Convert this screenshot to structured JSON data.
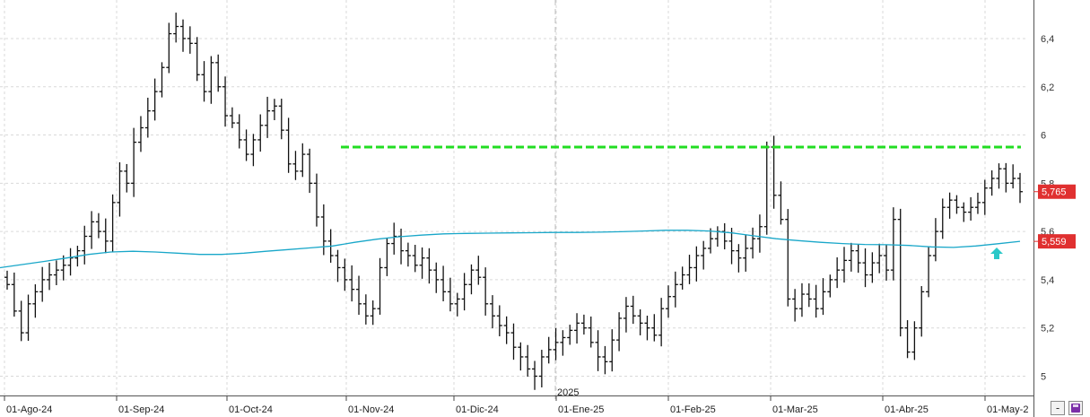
{
  "chart_data": {
    "type": "ohlc",
    "title": "",
    "xlabel": "",
    "ylabel": "",
    "ylim": [
      4.92,
      6.53
    ],
    "y_ticks": [
      {
        "value": 5.0,
        "label": "5"
      },
      {
        "value": 5.2,
        "label": "5,2"
      },
      {
        "value": 5.4,
        "label": "5,4"
      },
      {
        "value": 5.6,
        "label": "5,6"
      },
      {
        "value": 5.8,
        "label": "5,8"
      },
      {
        "value": 6.0,
        "label": "6"
      },
      {
        "value": 6.2,
        "label": "6,2"
      },
      {
        "value": 6.4,
        "label": "6,4"
      }
    ],
    "x_tick_labels": [
      "01-Ago-24",
      "01-Sep-24",
      "01-Oct-24",
      "01-Nov-24",
      "01-Dic-24",
      "01-Ene-25",
      "01-Feb-25",
      "01-Mar-25",
      "01-Abr-25",
      "01-May-2"
    ],
    "year_marker": {
      "label": "2025",
      "after_label": "01-Ene-25"
    },
    "grid": true,
    "close_series": [
      5.38,
      5.27,
      5.18,
      5.3,
      5.35,
      5.4,
      5.42,
      5.44,
      5.46,
      5.49,
      5.52,
      5.58,
      5.64,
      5.6,
      5.56,
      5.72,
      5.85,
      5.8,
      5.97,
      6.03,
      6.1,
      6.18,
      6.28,
      6.42,
      6.45,
      6.4,
      6.38,
      6.25,
      6.18,
      6.3,
      6.2,
      6.08,
      6.05,
      5.98,
      5.92,
      5.98,
      6.04,
      6.1,
      6.12,
      6.02,
      5.88,
      5.85,
      5.92,
      5.8,
      5.66,
      5.56,
      5.5,
      5.45,
      5.4,
      5.36,
      5.3,
      5.25,
      5.28,
      5.45,
      5.55,
      5.58,
      5.52,
      5.5,
      5.46,
      5.49,
      5.44,
      5.4,
      5.35,
      5.3,
      5.32,
      5.38,
      5.44,
      5.41,
      5.3,
      5.25,
      5.21,
      5.18,
      5.12,
      5.08,
      5.03,
      5.0,
      5.08,
      5.11,
      5.14,
      5.16,
      5.19,
      5.22,
      5.2,
      5.14,
      5.08,
      5.06,
      5.15,
      5.24,
      5.29,
      5.25,
      5.22,
      5.2,
      5.17,
      5.28,
      5.33,
      5.38,
      5.42,
      5.45,
      5.5,
      5.53,
      5.57,
      5.6,
      5.56,
      5.52,
      5.49,
      5.53,
      5.57,
      5.62,
      5.95,
      5.75,
      5.65,
      5.32,
      5.28,
      5.34,
      5.32,
      5.28,
      5.35,
      5.4,
      5.44,
      5.48,
      5.52,
      5.47,
      5.42,
      5.47,
      5.5,
      5.44,
      5.65,
      5.2,
      5.1,
      5.2,
      5.35,
      5.5,
      5.6,
      5.7,
      5.73,
      5.7,
      5.68,
      5.7,
      5.72,
      5.78,
      5.82,
      5.86,
      5.8,
      5.82,
      5.765
    ],
    "series": [
      {
        "name": "",
        "type": "line",
        "color": "#19a7c9",
        "values": [
          5.45,
          5.463,
          5.476,
          5.49,
          5.505,
          5.515,
          5.518,
          5.515,
          5.51,
          5.505,
          5.505,
          5.51,
          5.518,
          5.525,
          5.532,
          5.54,
          5.555,
          5.568,
          5.578,
          5.585,
          5.59,
          5.592,
          5.593,
          5.594,
          5.595,
          5.596,
          5.596,
          5.597,
          5.599,
          5.602,
          5.605,
          5.605,
          5.602,
          5.594,
          5.582,
          5.57,
          5.562,
          5.555,
          5.55,
          5.546,
          5.545,
          5.542,
          5.536,
          5.534,
          5.54,
          5.549,
          5.559
        ]
      }
    ],
    "resistance_line": {
      "value": 5.95,
      "color": "#22dd22",
      "style": "dashed"
    },
    "last_price": {
      "value": 5.765,
      "label": "5,765",
      "color": "#e03030"
    },
    "ma_last": {
      "value": 5.559,
      "label": "5,559",
      "color": "#e03030"
    },
    "arrow": {
      "direction": "up",
      "color": "#2ac8c8"
    },
    "colors": {
      "bars": "#111111",
      "grid": "#d9d9d9"
    }
  },
  "controls": {
    "zoom_out_icon": "-",
    "save_icon": "save"
  }
}
